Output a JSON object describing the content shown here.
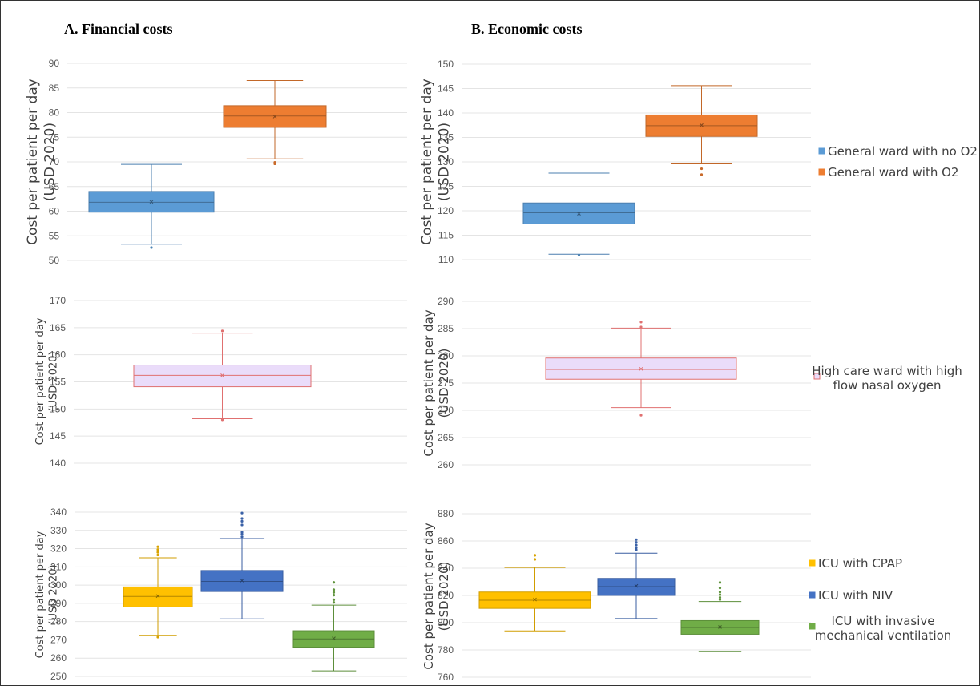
{
  "titles": {
    "left": "A. Financial costs",
    "right": "B. Economic costs"
  },
  "y_label": {
    "line1": "Cost per patient per day",
    "line2": "(USD 2020)"
  },
  "legends": [
    [
      {
        "label": "General ward with no O2",
        "color": "#5B9BD5"
      },
      {
        "label": "General ward with O2",
        "color": "#ED7D31"
      }
    ],
    [
      {
        "label": "High care ward with high",
        "label2": "flow nasal oxygen",
        "color": "#EADCFA",
        "border": "#E07070"
      }
    ],
    [
      {
        "label": "ICU with CPAP",
        "color": "#FFC000"
      },
      {
        "label": "ICU with NIV",
        "color": "#4472C4"
      },
      {
        "label": "ICU with invasive",
        "label2": "mechanical ventilation",
        "color": "#70AD47"
      }
    ]
  ],
  "chart_data": [
    {
      "type": "boxplot",
      "panel": "A",
      "row": 1,
      "ylim": [
        50,
        90
      ],
      "yticks": [
        50,
        55,
        60,
        65,
        70,
        75,
        80,
        85,
        90
      ],
      "grid": true,
      "series": [
        {
          "name": "General ward with no O2",
          "color": "#5B9BD5",
          "min": 53.3,
          "q1": 59.8,
          "median": 61.8,
          "mean": 61.9,
          "q3": 64.0,
          "max": 69.5,
          "outliers": [
            52.6
          ]
        },
        {
          "name": "General ward with O2",
          "color": "#ED7D31",
          "min": 70.6,
          "q1": 77.0,
          "median": 79.3,
          "mean": 79.2,
          "q3": 81.4,
          "max": 86.5,
          "outliers": [
            69.6,
            69.9
          ]
        }
      ]
    },
    {
      "type": "boxplot",
      "panel": "B",
      "row": 1,
      "ylim": [
        110,
        150
      ],
      "yticks": [
        110,
        115,
        120,
        125,
        130,
        135,
        140,
        145,
        150
      ],
      "grid": true,
      "series": [
        {
          "name": "General ward with no O2",
          "color": "#5B9BD5",
          "min": 111.1,
          "q1": 117.3,
          "median": 119.6,
          "mean": 119.4,
          "q3": 121.6,
          "max": 127.7,
          "outliers": [
            110.9
          ]
        },
        {
          "name": "General ward with O2",
          "color": "#ED7D31",
          "min": 129.6,
          "q1": 135.2,
          "median": 137.4,
          "mean": 137.5,
          "q3": 139.6,
          "max": 145.6,
          "outliers": [
            127.4,
            128.6
          ]
        }
      ]
    },
    {
      "type": "boxplot",
      "panel": "A",
      "row": 2,
      "ylim": [
        140,
        170
      ],
      "yticks": [
        140,
        145,
        150,
        155,
        160,
        165,
        170
      ],
      "grid": true,
      "series": [
        {
          "name": "High care ward with high flow nasal oxygen",
          "color": "#EADCFA",
          "edge": "#E07070",
          "min": 148.2,
          "q1": 154.1,
          "median": 156.2,
          "mean": 156.2,
          "q3": 158.1,
          "max": 164.0,
          "outliers": [
            164.4,
            148.0
          ]
        }
      ]
    },
    {
      "type": "boxplot",
      "panel": "B",
      "row": 2,
      "ylim": [
        260,
        290
      ],
      "yticks": [
        260,
        265,
        270,
        275,
        280,
        285,
        290
      ],
      "grid": true,
      "series": [
        {
          "name": "High care ward with high flow nasal oxygen",
          "color": "#EADCFA",
          "edge": "#E07070",
          "min": 270.5,
          "q1": 275.7,
          "median": 277.5,
          "mean": 277.6,
          "q3": 279.6,
          "max": 285.1,
          "outliers": [
            286.2,
            285.3,
            269.1
          ]
        }
      ]
    },
    {
      "type": "boxplot",
      "panel": "A",
      "row": 3,
      "ylim": [
        250,
        340
      ],
      "yticks": [
        250,
        260,
        270,
        280,
        290,
        300,
        310,
        320,
        330,
        340
      ],
      "grid": true,
      "series": [
        {
          "name": "ICU with CPAP",
          "color": "#FFC000",
          "min": 272.5,
          "q1": 288.0,
          "median": 293.8,
          "mean": 294.0,
          "q3": 299.0,
          "max": 315.0,
          "outliers": [
            316.5,
            318.0,
            319.5,
            321.0,
            271.5
          ]
        },
        {
          "name": "ICU with NIV",
          "color": "#4472C4",
          "min": 281.5,
          "q1": 296.5,
          "median": 302.0,
          "mean": 302.5,
          "q3": 308.0,
          "max": 325.5,
          "outliers": [
            326.5,
            328.0,
            329.0,
            333.0,
            335.0,
            336.5,
            339.5
          ]
        },
        {
          "name": "ICU with invasive mechanical ventilation",
          "color": "#70AD47",
          "min": 253.0,
          "q1": 266.0,
          "median": 270.5,
          "mean": 270.8,
          "q3": 275.0,
          "max": 289.0,
          "outliers": [
            290.5,
            292.0,
            294.5,
            296.0,
            297.5,
            301.5
          ]
        }
      ]
    },
    {
      "type": "boxplot",
      "panel": "B",
      "row": 3,
      "ylim": [
        760,
        880
      ],
      "yticks": [
        760,
        780,
        800,
        820,
        840,
        860,
        880
      ],
      "grid": true,
      "series": [
        {
          "name": "ICU with CPAP",
          "color": "#FFC000",
          "min": 794.0,
          "q1": 810.5,
          "median": 816.5,
          "mean": 817.0,
          "q3": 822.5,
          "max": 840.5,
          "outliers": [
            846.5,
            849.5
          ]
        },
        {
          "name": "ICU with NIV",
          "color": "#4472C4",
          "min": 803.0,
          "q1": 820.0,
          "median": 826.5,
          "mean": 827.0,
          "q3": 832.5,
          "max": 851.0,
          "outliers": [
            853.5,
            855.0,
            857.0,
            859.0,
            861.0
          ]
        },
        {
          "name": "ICU with invasive mechanical ventilation",
          "color": "#70AD47",
          "min": 779.0,
          "q1": 791.5,
          "median": 796.5,
          "mean": 796.8,
          "q3": 801.5,
          "max": 815.5,
          "outliers": [
            817.0,
            818.5,
            820.5,
            822.5,
            825.5,
            829.5
          ]
        }
      ]
    }
  ]
}
